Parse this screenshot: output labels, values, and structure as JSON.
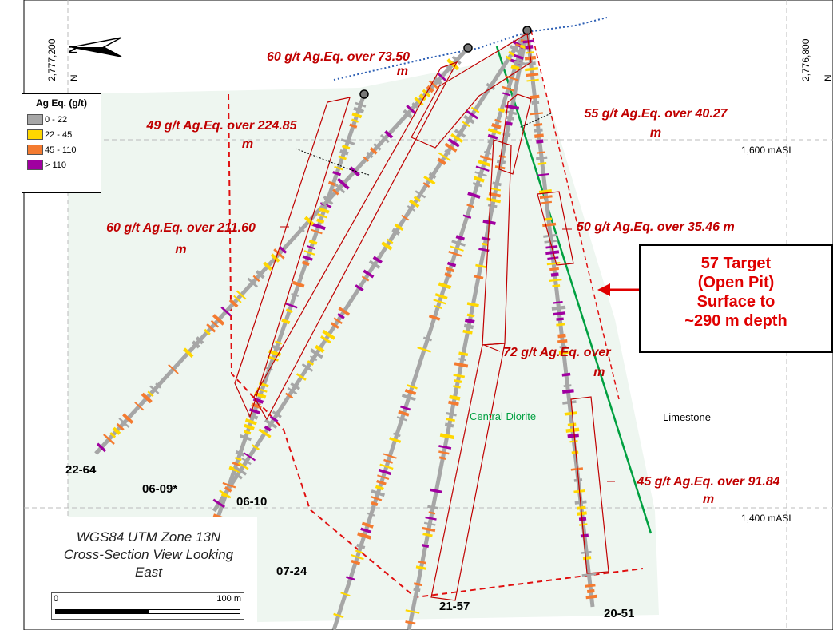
{
  "legend": {
    "title": "Ag Eq. (g/t)",
    "items": [
      {
        "label": "0 - 22",
        "color": "#a6a6a6"
      },
      {
        "label": "22 - 45",
        "color": "#ffd700"
      },
      {
        "label": "45 - 110",
        "color": "#f47b30"
      },
      {
        "label": "> 110",
        "color": "#a000a0"
      }
    ]
  },
  "north_arrow": "N",
  "coords": {
    "left_value": "2,777,200",
    "left_unit": "N",
    "right_value": "2,776,800",
    "right_unit": "N"
  },
  "elevations": {
    "upper": "1,600 mASL",
    "lower": "1,400 mASL"
  },
  "intercepts": {
    "a": {
      "line1": "60 g/t Ag.Eq. over 73.50",
      "line2": "m"
    },
    "b": {
      "line1": "49 g/t Ag.Eq. over 224.85",
      "line2": "m"
    },
    "c": {
      "line1": "55 g/t Ag.Eq. over 40.27",
      "line2": "m"
    },
    "d": {
      "line1": "60 g/t Ag.Eq. over 211.60",
      "line2": "m"
    },
    "e": {
      "line1": "50 g/t Ag.Eq. over 35.46 m"
    },
    "f": {
      "line1": "72 g/t Ag.Eq. over",
      "line2": "m"
    },
    "g": {
      "line1": "45 g/t Ag.Eq. over 91.84",
      "line2": "m"
    }
  },
  "target": {
    "line1": "57 Target",
    "line2": "(Open Pit)",
    "line3": "Surface to",
    "line4": "~290 m depth"
  },
  "geology": {
    "diorite": "Central Diorite",
    "limestone": "Limestone"
  },
  "holes": [
    "22-64",
    "06-09*",
    "06-10",
    "07-24",
    "21-57",
    "20-51"
  ],
  "projection": {
    "line1": "WGS84 UTM Zone 13N",
    "line2": "Cross-Section View Looking",
    "line3": "East"
  },
  "scale": {
    "start": "0",
    "end": "100 m"
  },
  "colors": {
    "intercept_red": "#c00000",
    "target_red": "#e00000",
    "diorite_green": "#00a040",
    "shade": "#eef6f0"
  }
}
